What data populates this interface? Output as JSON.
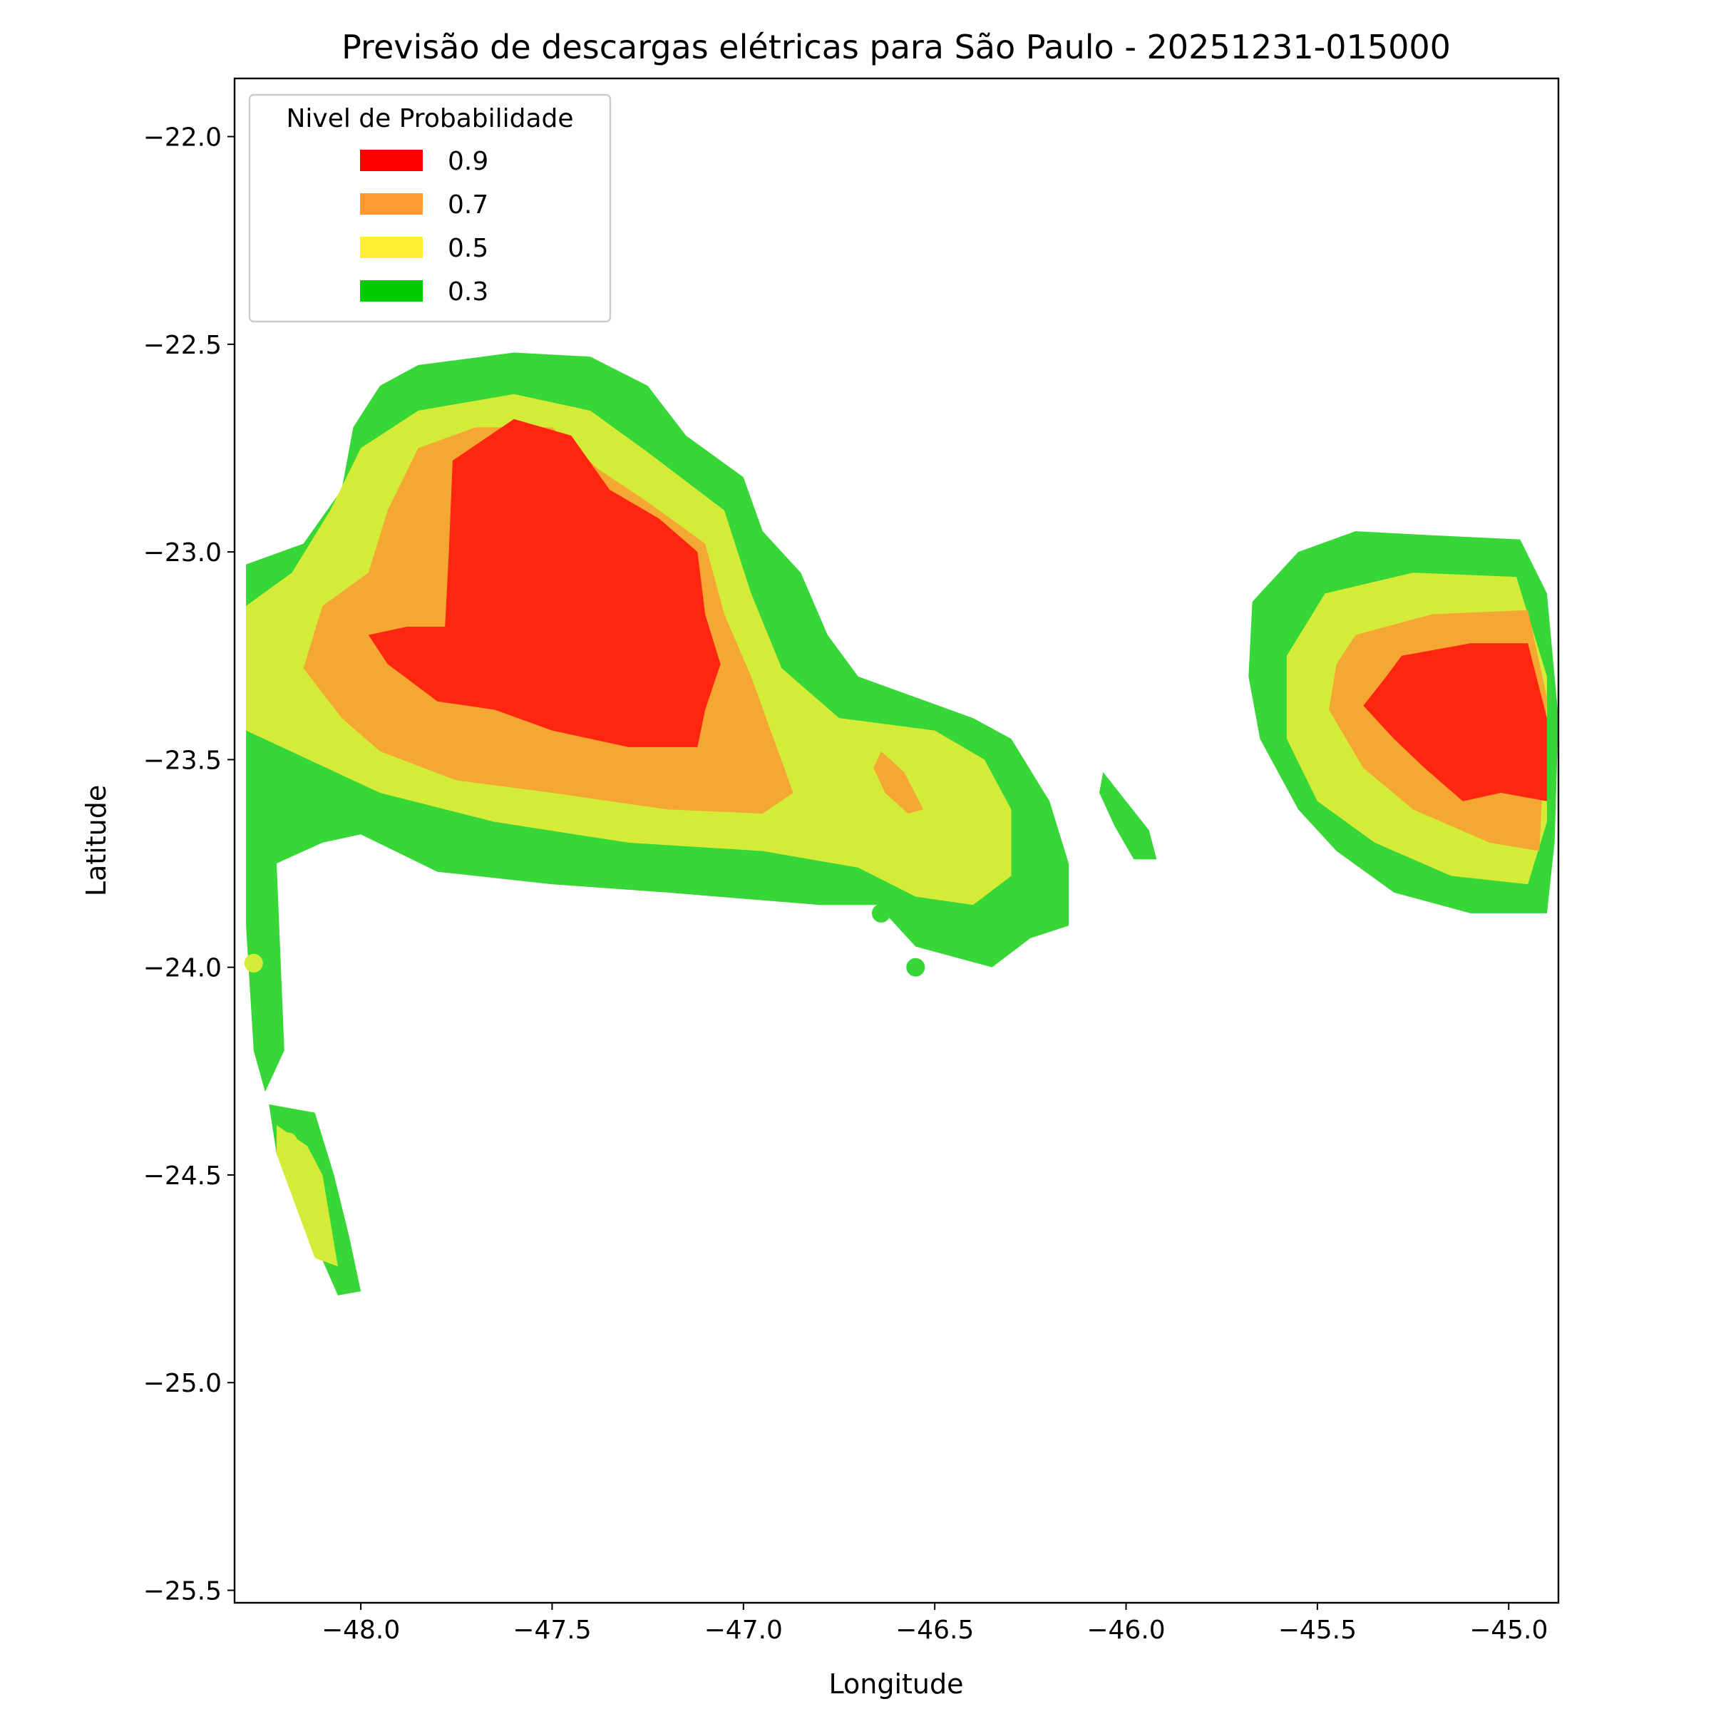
{
  "chart_data": {
    "type": "contour-map",
    "title": "Previsão de descargas elétricas para São Paulo - 20251231-015000",
    "xlabel": "Longitude",
    "ylabel": "Latitude",
    "xlim": [
      -48.33,
      -44.87
    ],
    "ylim": [
      -25.53,
      -21.86
    ],
    "xticks": [
      -48.0,
      -47.5,
      -47.0,
      -46.5,
      -46.0,
      -45.5,
      -45.0
    ],
    "xtick_labels": [
      "−48.0",
      "−47.5",
      "−47.0",
      "−46.5",
      "−46.0",
      "−45.5",
      "−45.0"
    ],
    "yticks": [
      -22.0,
      -22.5,
      -23.0,
      -23.5,
      -24.0,
      -24.5,
      -25.0,
      -25.5
    ],
    "ytick_labels": [
      "−22.0",
      "−22.5",
      "−23.0",
      "−23.5",
      "−24.0",
      "−24.5",
      "−25.0",
      "−25.5"
    ],
    "grid": false,
    "legend": {
      "title": "Nivel de Probabilidade",
      "position": "top-left",
      "entries": [
        {
          "label": "0.9",
          "color": "#ff0000"
        },
        {
          "label": "0.7",
          "color": "#ff9933"
        },
        {
          "label": "0.5",
          "color": "#ffee33"
        },
        {
          "label": "0.3",
          "color": "#00cc00"
        }
      ]
    },
    "fill_colors": {
      "0.3": "#36d736",
      "0.5": "#d4ec38",
      "0.7": "#f5a733",
      "0.9": "#ff2610"
    },
    "regions": [
      {
        "level": "0.3",
        "points": [
          [
            -48.3,
            -23.03
          ],
          [
            -48.15,
            -22.98
          ],
          [
            -48.05,
            -22.85
          ],
          [
            -48.02,
            -22.7
          ],
          [
            -47.95,
            -22.6
          ],
          [
            -47.85,
            -22.55
          ],
          [
            -47.6,
            -22.52
          ],
          [
            -47.4,
            -22.53
          ],
          [
            -47.25,
            -22.6
          ],
          [
            -47.15,
            -22.72
          ],
          [
            -47.0,
            -22.82
          ],
          [
            -46.95,
            -22.95
          ],
          [
            -46.85,
            -23.05
          ],
          [
            -46.78,
            -23.2
          ],
          [
            -46.7,
            -23.3
          ],
          [
            -46.55,
            -23.35
          ],
          [
            -46.4,
            -23.4
          ],
          [
            -46.3,
            -23.45
          ],
          [
            -46.2,
            -23.6
          ],
          [
            -46.15,
            -23.75
          ],
          [
            -46.15,
            -23.9
          ],
          [
            -46.25,
            -23.93
          ],
          [
            -46.35,
            -24.0
          ],
          [
            -46.55,
            -23.95
          ],
          [
            -46.65,
            -23.85
          ],
          [
            -46.8,
            -23.85
          ],
          [
            -47.2,
            -23.82
          ],
          [
            -47.5,
            -23.8
          ],
          [
            -47.8,
            -23.77
          ],
          [
            -48.0,
            -23.68
          ],
          [
            -48.1,
            -23.7
          ],
          [
            -48.22,
            -23.75
          ],
          [
            -48.2,
            -24.2
          ],
          [
            -48.25,
            -24.3
          ],
          [
            -48.28,
            -24.2
          ],
          [
            -48.3,
            -23.9
          ],
          [
            -48.3,
            -23.6
          ]
        ]
      },
      {
        "level": "0.3",
        "points": [
          [
            -45.55,
            -23.0
          ],
          [
            -45.4,
            -22.95
          ],
          [
            -45.2,
            -22.96
          ],
          [
            -44.97,
            -22.97
          ],
          [
            -44.9,
            -23.1
          ],
          [
            -44.87,
            -23.4
          ],
          [
            -44.88,
            -23.7
          ],
          [
            -44.9,
            -23.87
          ],
          [
            -45.1,
            -23.87
          ],
          [
            -45.3,
            -23.82
          ],
          [
            -45.45,
            -23.72
          ],
          [
            -45.55,
            -23.62
          ],
          [
            -45.65,
            -23.45
          ],
          [
            -45.68,
            -23.3
          ],
          [
            -45.67,
            -23.12
          ]
        ]
      },
      {
        "level": "0.3",
        "points": [
          [
            -48.24,
            -24.33
          ],
          [
            -48.12,
            -24.35
          ],
          [
            -48.07,
            -24.5
          ],
          [
            -48.03,
            -24.65
          ],
          [
            -48.0,
            -24.78
          ],
          [
            -48.06,
            -24.79
          ],
          [
            -48.15,
            -24.6
          ],
          [
            -48.22,
            -24.45
          ]
        ]
      },
      {
        "level": "0.3",
        "points": [
          [
            -46.06,
            -23.53
          ],
          [
            -46.0,
            -23.6
          ],
          [
            -45.94,
            -23.67
          ],
          [
            -45.92,
            -23.74
          ],
          [
            -45.98,
            -23.74
          ],
          [
            -46.03,
            -23.66
          ],
          [
            -46.07,
            -23.58
          ]
        ]
      },
      {
        "level": "0.5",
        "points": [
          [
            -48.3,
            -23.13
          ],
          [
            -48.18,
            -23.05
          ],
          [
            -48.08,
            -22.9
          ],
          [
            -48.0,
            -22.75
          ],
          [
            -47.85,
            -22.66
          ],
          [
            -47.6,
            -22.62
          ],
          [
            -47.4,
            -22.66
          ],
          [
            -47.25,
            -22.76
          ],
          [
            -47.05,
            -22.9
          ],
          [
            -46.98,
            -23.1
          ],
          [
            -46.9,
            -23.28
          ],
          [
            -46.75,
            -23.4
          ],
          [
            -46.5,
            -23.43
          ],
          [
            -46.37,
            -23.5
          ],
          [
            -46.3,
            -23.62
          ],
          [
            -46.3,
            -23.78
          ],
          [
            -46.4,
            -23.85
          ],
          [
            -46.55,
            -23.83
          ],
          [
            -46.7,
            -23.76
          ],
          [
            -46.95,
            -23.72
          ],
          [
            -47.3,
            -23.7
          ],
          [
            -47.65,
            -23.65
          ],
          [
            -47.95,
            -23.58
          ],
          [
            -48.3,
            -23.43
          ]
        ]
      },
      {
        "level": "0.5",
        "points": [
          [
            -45.48,
            -23.1
          ],
          [
            -45.25,
            -23.05
          ],
          [
            -44.98,
            -23.06
          ],
          [
            -44.9,
            -23.3
          ],
          [
            -44.9,
            -23.65
          ],
          [
            -44.95,
            -23.8
          ],
          [
            -45.15,
            -23.78
          ],
          [
            -45.35,
            -23.7
          ],
          [
            -45.5,
            -23.6
          ],
          [
            -45.58,
            -23.45
          ],
          [
            -45.58,
            -23.25
          ]
        ]
      },
      {
        "level": "0.5",
        "points": [
          [
            -48.22,
            -24.38
          ],
          [
            -48.14,
            -24.43
          ],
          [
            -48.1,
            -24.5
          ],
          [
            -48.06,
            -24.72
          ],
          [
            -48.12,
            -24.7
          ],
          [
            -48.18,
            -24.55
          ],
          [
            -48.22,
            -24.45
          ]
        ]
      },
      {
        "level": "0.7",
        "points": [
          [
            -48.15,
            -23.28
          ],
          [
            -48.1,
            -23.13
          ],
          [
            -47.98,
            -23.05
          ],
          [
            -47.93,
            -22.9
          ],
          [
            -47.85,
            -22.75
          ],
          [
            -47.7,
            -22.7
          ],
          [
            -47.5,
            -22.7
          ],
          [
            -47.38,
            -22.8
          ],
          [
            -47.25,
            -22.88
          ],
          [
            -47.1,
            -22.98
          ],
          [
            -47.05,
            -23.15
          ],
          [
            -46.98,
            -23.3
          ],
          [
            -46.87,
            -23.58
          ],
          [
            -46.95,
            -23.63
          ],
          [
            -47.2,
            -23.62
          ],
          [
            -47.5,
            -23.58
          ],
          [
            -47.75,
            -23.55
          ],
          [
            -47.95,
            -23.48
          ],
          [
            -48.05,
            -23.4
          ]
        ]
      },
      {
        "level": "0.7",
        "points": [
          [
            -45.4,
            -23.2
          ],
          [
            -45.2,
            -23.15
          ],
          [
            -44.95,
            -23.14
          ],
          [
            -44.9,
            -23.35
          ],
          [
            -44.92,
            -23.72
          ],
          [
            -45.05,
            -23.7
          ],
          [
            -45.25,
            -23.62
          ],
          [
            -45.38,
            -23.52
          ],
          [
            -45.47,
            -23.38
          ],
          [
            -45.45,
            -23.27
          ]
        ]
      },
      {
        "level": "0.7",
        "points": [
          [
            -46.64,
            -23.48
          ],
          [
            -46.58,
            -23.53
          ],
          [
            -46.53,
            -23.62
          ],
          [
            -46.57,
            -23.63
          ],
          [
            -46.63,
            -23.58
          ],
          [
            -46.66,
            -23.52
          ]
        ]
      },
      {
        "level": "0.9",
        "points": [
          [
            -47.76,
            -22.78
          ],
          [
            -47.6,
            -22.68
          ],
          [
            -47.45,
            -22.72
          ],
          [
            -47.35,
            -22.85
          ],
          [
            -47.22,
            -22.92
          ],
          [
            -47.12,
            -23.0
          ],
          [
            -47.1,
            -23.15
          ],
          [
            -47.06,
            -23.27
          ],
          [
            -47.1,
            -23.38
          ],
          [
            -47.12,
            -23.47
          ],
          [
            -47.3,
            -23.47
          ],
          [
            -47.5,
            -23.43
          ],
          [
            -47.65,
            -23.38
          ],
          [
            -47.8,
            -23.36
          ],
          [
            -47.93,
            -23.27
          ],
          [
            -47.98,
            -23.2
          ],
          [
            -47.88,
            -23.18
          ],
          [
            -47.78,
            -23.18
          ],
          [
            -47.77,
            -23.0
          ]
        ]
      },
      {
        "level": "0.9",
        "points": [
          [
            -45.28,
            -23.25
          ],
          [
            -45.1,
            -23.22
          ],
          [
            -44.95,
            -23.22
          ],
          [
            -44.9,
            -23.4
          ],
          [
            -44.9,
            -23.6
          ],
          [
            -45.02,
            -23.58
          ],
          [
            -45.12,
            -23.6
          ],
          [
            -45.22,
            -23.52
          ],
          [
            -45.3,
            -23.45
          ],
          [
            -45.38,
            -23.37
          ],
          [
            -45.32,
            -23.3
          ]
        ]
      }
    ],
    "points": [
      {
        "lon": -48.09,
        "lat": -23.47,
        "level": "0.5"
      },
      {
        "lon": -48.28,
        "lat": -23.99,
        "level": "0.5"
      },
      {
        "lon": -48.19,
        "lat": -24.42,
        "level": "0.5"
      },
      {
        "lon": -46.64,
        "lat": -23.87,
        "level": "0.3"
      },
      {
        "lon": -46.55,
        "lat": -24.0,
        "level": "0.3"
      }
    ]
  }
}
